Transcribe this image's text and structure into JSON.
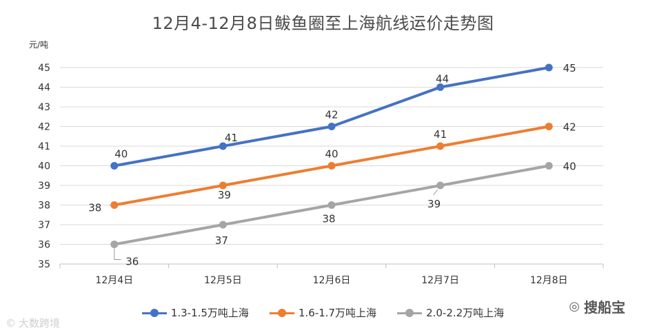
{
  "title": "12月4-12月8日鲅鱼圈至上海航线运价走势图",
  "unit_label": "元/吨",
  "watermark_left": "大数跨境",
  "watermark_right": "搜船宝",
  "chart_data": {
    "type": "line",
    "title": "12月4-12月8日鲅鱼圈至上海航线运价走势图",
    "ylabel": "元/吨",
    "xlabel": "",
    "categories": [
      "12月4日",
      "12月5日",
      "12月6日",
      "12月7日",
      "12月8日"
    ],
    "ylim": [
      35,
      45
    ],
    "yticks": [
      35,
      36,
      37,
      38,
      39,
      40,
      41,
      42,
      43,
      44,
      45
    ],
    "grid": true,
    "legend_position": "bottom",
    "series": [
      {
        "name": "1.3-1.5万吨上海",
        "color": "#4472C4",
        "values": [
          40,
          41,
          42,
          44,
          45
        ]
      },
      {
        "name": "1.6-1.7万吨上海",
        "color": "#ED7D31",
        "values": [
          38,
          39,
          40,
          41,
          42
        ]
      },
      {
        "name": "2.0-2.2万吨上海",
        "color": "#A5A5A5",
        "values": [
          36,
          37,
          38,
          39,
          40
        ]
      }
    ]
  }
}
